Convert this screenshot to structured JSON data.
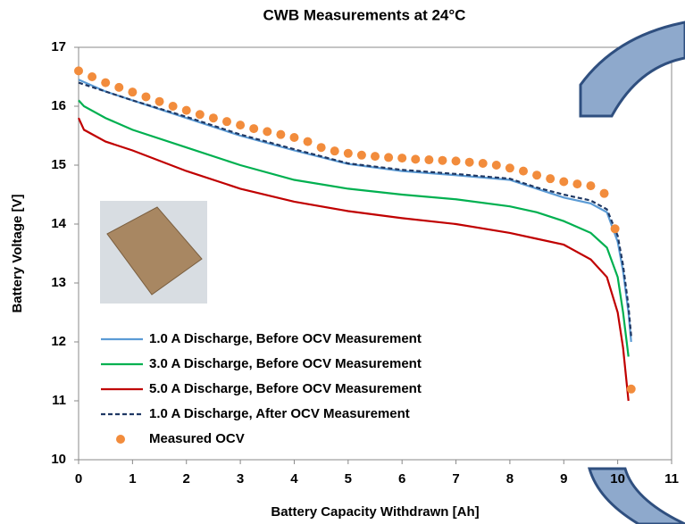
{
  "chart_data": {
    "type": "line",
    "title": "CWB Measurements at 24°C",
    "x_label": "Battery Capacity Withdrawn [Ah]",
    "y_label": "Battery Voltage [V]",
    "xlim": [
      0,
      11
    ],
    "ylim": [
      10,
      17
    ],
    "xticks": [
      0,
      1,
      2,
      3,
      4,
      5,
      6,
      7,
      8,
      9,
      10,
      11
    ],
    "yticks": [
      10,
      11,
      12,
      13,
      14,
      15,
      16,
      17
    ],
    "series": [
      {
        "name": "1.0 A Discharge, Before OCV Measurement",
        "color": "#5b9bd5",
        "style": "solid",
        "x": [
          0,
          0.5,
          1,
          2,
          3,
          4,
          5,
          6,
          7,
          8,
          8.5,
          9,
          9.5,
          9.8,
          10,
          10.1,
          10.2,
          10.25
        ],
        "values": [
          16.45,
          16.25,
          16.1,
          15.8,
          15.5,
          15.25,
          15.02,
          14.9,
          14.83,
          14.75,
          14.6,
          14.45,
          14.35,
          14.2,
          13.7,
          13.2,
          12.5,
          12.0
        ]
      },
      {
        "name": "3.0 A Discharge, Before OCV Measurement",
        "color": "#00b050",
        "style": "solid",
        "x": [
          0,
          0.1,
          0.5,
          1,
          2,
          3,
          4,
          5,
          6,
          7,
          8,
          8.5,
          9,
          9.5,
          9.8,
          10,
          10.1,
          10.2
        ],
        "values": [
          16.1,
          16.0,
          15.8,
          15.6,
          15.3,
          15.0,
          14.75,
          14.6,
          14.5,
          14.42,
          14.3,
          14.2,
          14.05,
          13.85,
          13.6,
          13.1,
          12.5,
          11.75
        ]
      },
      {
        "name": "5.0 A Discharge, Before OCV Measurement",
        "color": "#c00000",
        "style": "solid",
        "x": [
          0,
          0.1,
          0.5,
          1,
          2,
          3,
          4,
          5,
          6,
          7,
          8,
          8.5,
          9,
          9.5,
          9.8,
          10,
          10.1,
          10.2
        ],
        "values": [
          15.8,
          15.6,
          15.4,
          15.25,
          14.9,
          14.6,
          14.38,
          14.22,
          14.1,
          14.0,
          13.85,
          13.75,
          13.65,
          13.4,
          13.1,
          12.5,
          11.9,
          11.0
        ]
      },
      {
        "name": "1.0 A Discharge, After OCV Measurement",
        "color": "#1f3864",
        "style": "dashed",
        "x": [
          0,
          0.5,
          1,
          2,
          3,
          4,
          5,
          6,
          7,
          8,
          8.5,
          9,
          9.5,
          9.8,
          10,
          10.1,
          10.2,
          10.25
        ],
        "values": [
          16.4,
          16.25,
          16.1,
          15.82,
          15.52,
          15.27,
          15.03,
          14.92,
          14.85,
          14.77,
          14.62,
          14.5,
          14.4,
          14.25,
          13.8,
          13.3,
          12.6,
          12.1
        ]
      },
      {
        "name": "Measured OCV",
        "color": "#f28c3c",
        "style": "markers",
        "x": [
          0,
          0.25,
          0.5,
          0.75,
          1,
          1.25,
          1.5,
          1.75,
          2,
          2.25,
          2.5,
          2.75,
          3,
          3.25,
          3.5,
          3.75,
          4,
          4.25,
          4.5,
          4.75,
          5,
          5.25,
          5.5,
          5.75,
          6,
          6.25,
          6.5,
          6.75,
          7,
          7.25,
          7.5,
          7.75,
          8,
          8.25,
          8.5,
          8.75,
          9,
          9.25,
          9.5,
          9.75,
          9.95,
          10.25
        ],
        "values": [
          16.6,
          16.5,
          16.4,
          16.32,
          16.24,
          16.16,
          16.08,
          16.0,
          15.93,
          15.86,
          15.8,
          15.74,
          15.68,
          15.62,
          15.57,
          15.52,
          15.47,
          15.4,
          15.3,
          15.24,
          15.2,
          15.17,
          15.15,
          15.13,
          15.12,
          15.1,
          15.09,
          15.08,
          15.07,
          15.05,
          15.03,
          15.0,
          14.95,
          14.9,
          14.83,
          14.77,
          14.72,
          14.68,
          14.65,
          14.52,
          13.92,
          11.2
        ]
      }
    ]
  }
}
